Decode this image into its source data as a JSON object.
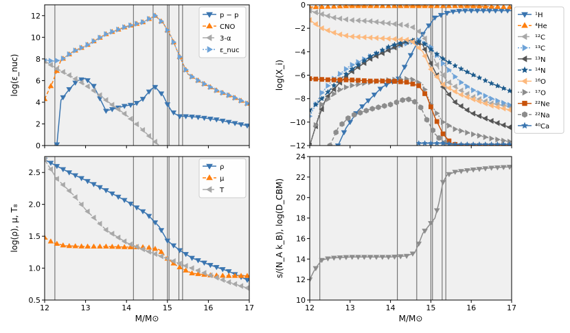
{
  "chart_data": [
    {
      "id": "nuc",
      "type": "line",
      "xlabel": "",
      "ylabel": "log(ε_nuc)",
      "xlim": [
        12,
        17
      ],
      "ylim": [
        0,
        13
      ],
      "xticks": [
        12,
        13,
        14,
        15,
        16,
        17
      ],
      "yticks": [
        0,
        2,
        4,
        6,
        8,
        10,
        12
      ],
      "xticklabels": [
        "",
        "",
        "",
        "",
        "",
        ""
      ],
      "yticklabels": [
        "0",
        "2",
        "4",
        "6",
        "8",
        "10",
        "12"
      ],
      "legend": "top-right",
      "series": [
        {
          "name": "p − p",
          "color": "#3a75b0",
          "dash": "",
          "marker": "tri-down",
          "x": [
            12.3,
            12.4,
            12.6,
            12.8,
            13.0,
            13.2,
            13.5,
            13.8,
            14.0,
            14.2,
            14.4,
            14.6,
            14.7,
            14.8,
            14.9,
            15.0,
            15.1,
            15.2,
            15.3,
            15.5,
            15.8,
            16.2,
            16.6,
            17.0
          ],
          "y": [
            0.1,
            4.2,
            5.2,
            6.0,
            6.2,
            5.5,
            3.2,
            3.5,
            3.7,
            3.8,
            4.3,
            5.2,
            5.4,
            5.0,
            4.6,
            3.8,
            3.2,
            2.9,
            2.7,
            2.7,
            2.6,
            2.4,
            2.1,
            1.8
          ]
        },
        {
          "name": "CNO",
          "color": "#ff7f0e",
          "dash": "5,3",
          "marker": "tri-up",
          "x": [
            12.0,
            12.2,
            12.4,
            12.7,
            13.0,
            13.5,
            14.0,
            14.4,
            14.7,
            14.9,
            15.1,
            15.3,
            15.5,
            15.8,
            16.2,
            16.6,
            17.0
          ],
          "y": [
            4.3,
            5.9,
            7.9,
            8.7,
            9.2,
            10.3,
            11.0,
            11.4,
            12.0,
            11.3,
            10.0,
            8.2,
            6.6,
            5.9,
            5.1,
            4.5,
            3.8
          ]
        },
        {
          "name": "3-α",
          "color": "#a8a8a8",
          "dash": "7,3",
          "marker": "tri-left",
          "x": [
            12.0,
            12.3,
            12.6,
            13.0,
            13.3,
            13.6,
            14.0,
            14.3,
            14.6,
            14.8
          ],
          "y": [
            7.8,
            7.1,
            6.5,
            5.6,
            4.8,
            3.9,
            2.8,
            1.8,
            0.7,
            0.0
          ]
        },
        {
          "name": "ε_nuc",
          "color": "#6ea3d8",
          "dash": "2,2",
          "marker": "tri-right",
          "x": [
            12.0,
            12.2,
            12.4,
            12.7,
            13.0,
            13.5,
            14.0,
            14.4,
            14.7,
            14.9,
            15.1,
            15.3,
            15.5,
            15.8,
            16.2,
            16.6,
            17.0
          ],
          "y": [
            7.9,
            7.8,
            7.9,
            8.7,
            9.2,
            10.3,
            11.0,
            11.4,
            12.0,
            11.3,
            10.0,
            8.2,
            6.6,
            5.9,
            5.1,
            4.5,
            3.8
          ]
        }
      ]
    },
    {
      "id": "abund",
      "type": "line",
      "xlabel": "",
      "ylabel": "log(X_i)",
      "xlim": [
        12,
        17
      ],
      "ylim": [
        -12,
        0
      ],
      "xticks": [
        12,
        13,
        14,
        15,
        16,
        17
      ],
      "yticks": [
        -12,
        -10,
        -8,
        -6,
        -4,
        -2,
        0
      ],
      "xticklabels": [
        "",
        "",
        "",
        "",
        "",
        ""
      ],
      "yticklabels": [
        "−12",
        "−10",
        "−8",
        "−6",
        "−4",
        "−2",
        "0"
      ],
      "legend": "outside-right",
      "series": [
        {
          "name": "¹H",
          "color": "#3a75b0",
          "dash": "",
          "marker": "tri-down",
          "x": [
            12.7,
            12.9,
            13.2,
            13.5,
            13.8,
            14.2,
            14.5,
            14.7,
            14.9,
            15.1,
            15.3,
            15.5,
            15.8,
            16.2,
            16.6,
            17.0
          ],
          "y": [
            -12.0,
            -10.5,
            -9.0,
            -8.0,
            -7.0,
            -6.3,
            -4.3,
            -3.0,
            -2.0,
            -1.1,
            -0.8,
            -0.6,
            -0.5,
            -0.5,
            -0.5,
            -0.5
          ]
        },
        {
          "name": "⁴He",
          "color": "#ff7f0e",
          "dash": "5,3",
          "marker": "tri-up",
          "x": [
            12.0,
            13.0,
            14.0,
            15.0,
            16.0,
            17.0
          ],
          "y": [
            -0.2,
            -0.1,
            -0.1,
            -0.1,
            -0.1,
            -0.2
          ]
        },
        {
          "name": "¹²C",
          "color": "#a8a8a8",
          "dash": "7,3",
          "marker": "tri-left",
          "x": [
            12.0,
            12.3,
            12.6,
            13.0,
            13.5,
            14.0,
            14.5,
            14.8,
            15.0,
            15.2,
            15.4,
            15.7,
            16.0,
            16.5,
            17.0
          ],
          "y": [
            -0.5,
            -0.8,
            -1.1,
            -1.3,
            -1.4,
            -1.6,
            -1.8,
            -2.5,
            -4.0,
            -5.5,
            -6.5,
            -7.2,
            -7.8,
            -8.4,
            -8.7
          ]
        },
        {
          "name": "¹³C",
          "color": "#6ea3d8",
          "dash": "2,2",
          "marker": "tri-right",
          "x": [
            12.0,
            12.3,
            12.6,
            13.0,
            13.5,
            14.0,
            14.5,
            14.7,
            15.0,
            15.3,
            15.7,
            16.0,
            16.5,
            17.0
          ],
          "y": [
            -9.5,
            -7.5,
            -6.3,
            -5.2,
            -4.4,
            -3.7,
            -3.2,
            -3.0,
            -3.6,
            -5.0,
            -6.5,
            -7.2,
            -8.0,
            -8.6
          ]
        },
        {
          "name": "¹³N",
          "color": "#555555",
          "dash": "",
          "marker": "tri-left",
          "x": [
            12.0,
            12.2,
            12.4,
            12.7,
            13.0,
            13.5,
            14.0,
            14.5,
            14.8,
            15.0,
            15.3,
            15.6,
            16.0,
            16.5,
            17.0
          ],
          "y": [
            -12.0,
            -9.8,
            -8.0,
            -6.8,
            -5.8,
            -4.6,
            -3.8,
            -3.0,
            -3.4,
            -5.0,
            -7.0,
            -8.3,
            -9.2,
            -9.9,
            -10.5
          ]
        },
        {
          "name": "¹⁴N",
          "color": "#1c5a8c",
          "dash": "5,3",
          "marker": "star",
          "x": [
            12.0,
            12.3,
            12.7,
            13.0,
            13.5,
            14.0,
            14.5,
            14.8,
            15.0,
            15.3,
            15.6,
            16.0,
            16.5,
            17.0
          ],
          "y": [
            -9.0,
            -8.0,
            -6.5,
            -5.6,
            -4.4,
            -3.5,
            -3.0,
            -3.2,
            -3.8,
            -4.6,
            -5.2,
            -5.9,
            -6.7,
            -7.4
          ]
        },
        {
          "name": "¹⁶O",
          "color": "#fdb97d",
          "dash": "",
          "marker": "tri-left",
          "x": [
            12.0,
            12.3,
            12.7,
            13.0,
            13.5,
            14.0,
            14.5,
            14.8,
            15.0,
            15.3,
            15.7,
            16.0,
            16.5,
            17.0
          ],
          "y": [
            -1.3,
            -2.0,
            -2.5,
            -2.7,
            -2.8,
            -2.9,
            -3.0,
            -4.0,
            -5.5,
            -6.8,
            -7.6,
            -8.0,
            -8.6,
            -9.0
          ]
        },
        {
          "name": "¹⁷O",
          "color": "#8c8c8c",
          "dash": "2,2",
          "marker": "tri-right",
          "x": [
            12.0,
            12.3,
            12.7,
            13.0,
            13.5,
            14.0,
            14.5,
            14.8,
            15.0,
            15.3,
            15.6,
            16.0,
            16.5,
            17.0
          ],
          "y": [
            -12.0,
            -8.5,
            -7.3,
            -6.9,
            -6.6,
            -6.4,
            -6.3,
            -6.8,
            -8.5,
            -10.0,
            -10.6,
            -11.0,
            -11.4,
            -11.7
          ]
        },
        {
          "name": "²²Ne",
          "color": "#c8530b",
          "dash": "",
          "marker": "square",
          "x": [
            12.0,
            12.5,
            13.0,
            13.5,
            14.0,
            14.4,
            14.7,
            14.9,
            15.1,
            15.3,
            15.5,
            15.7,
            16.0,
            16.5,
            17.0
          ],
          "y": [
            -6.3,
            -6.4,
            -6.4,
            -6.5,
            -6.5,
            -6.6,
            -6.9,
            -7.8,
            -9.6,
            -11.0,
            -11.8,
            -12.0,
            -12.0,
            -12.0,
            -12.0
          ]
        },
        {
          "name": "²²Na",
          "color": "#8c8c8c",
          "dash": "5,3",
          "marker": "hexagon",
          "x": [
            12.5,
            12.7,
            13.0,
            13.5,
            14.0,
            14.4,
            14.7,
            14.9,
            15.1,
            15.3,
            15.5
          ],
          "y": [
            -12.0,
            -10.5,
            -9.5,
            -8.9,
            -8.5,
            -8.0,
            -8.4,
            -9.8,
            -11.0,
            -11.7,
            -12.0
          ]
        },
        {
          "name": "⁴⁰Ca",
          "color": "#3a75b0",
          "dash": "",
          "marker": "star",
          "x": [
            14.7,
            15.0,
            15.3,
            15.6,
            16.0,
            16.5,
            17.0
          ],
          "y": [
            -11.8,
            -11.8,
            -11.8,
            -11.9,
            -11.9,
            -11.9,
            -11.9
          ]
        }
      ]
    },
    {
      "id": "struct",
      "type": "line",
      "xlabel": "M/M⊙",
      "ylabel": "log(ρ), μ, T₈",
      "xlim": [
        12,
        17
      ],
      "ylim": [
        0.5,
        2.75
      ],
      "xticks": [
        12,
        13,
        14,
        15,
        16,
        17
      ],
      "yticks": [
        0.5,
        1.0,
        1.5,
        2.0,
        2.5
      ],
      "xticklabels": [
        "12",
        "13",
        "14",
        "15",
        "16",
        "17"
      ],
      "yticklabels": [
        "0.5",
        "1.0",
        "1.5",
        "2.0",
        "2.5"
      ],
      "legend": "top-right",
      "series": [
        {
          "name": "ρ",
          "color": "#3a75b0",
          "dash": "",
          "marker": "tri-down",
          "x": [
            12.0,
            12.3,
            12.6,
            13.0,
            13.5,
            14.0,
            14.5,
            14.8,
            15.0,
            15.3,
            15.6,
            16.0,
            16.5,
            17.0
          ],
          "y": [
            2.7,
            2.6,
            2.5,
            2.38,
            2.22,
            2.05,
            1.85,
            1.65,
            1.43,
            1.28,
            1.16,
            1.06,
            0.95,
            0.8
          ]
        },
        {
          "name": "μ",
          "color": "#ff7f0e",
          "dash": "5,3",
          "marker": "tri-up",
          "x": [
            12.0,
            12.2,
            12.5,
            13.0,
            13.5,
            14.0,
            14.5,
            14.8,
            15.0,
            15.2,
            15.4,
            15.6,
            16.0,
            16.5,
            17.0
          ],
          "y": [
            1.48,
            1.4,
            1.35,
            1.34,
            1.34,
            1.33,
            1.33,
            1.29,
            1.15,
            1.05,
            0.98,
            0.92,
            0.89,
            0.88,
            0.88
          ]
        },
        {
          "name": "T",
          "color": "#a8a8a8",
          "dash": "7,3",
          "marker": "tri-left",
          "x": [
            12.0,
            12.3,
            12.7,
            13.0,
            13.5,
            14.0,
            14.5,
            15.0,
            15.3,
            15.6,
            16.0,
            16.5,
            17.0
          ],
          "y": [
            2.7,
            2.4,
            2.15,
            1.92,
            1.6,
            1.4,
            1.27,
            1.15,
            1.07,
            1.0,
            0.9,
            0.78,
            0.68
          ]
        }
      ]
    },
    {
      "id": "entropy",
      "type": "line",
      "xlabel": "M/M⊙",
      "ylabel": "s/(N_A k_B), log(D_CBM)",
      "xlim": [
        12,
        17
      ],
      "ylim": [
        10,
        24
      ],
      "xticks": [
        12,
        13,
        14,
        15,
        16,
        17
      ],
      "yticks": [
        10,
        12,
        14,
        16,
        18,
        20,
        22,
        24
      ],
      "xticklabels": [
        "12",
        "13",
        "14",
        "15",
        "16",
        "17"
      ],
      "yticklabels": [
        "10",
        "12",
        "14",
        "16",
        "18",
        "20",
        "22",
        "24"
      ],
      "legend": "none",
      "series": [
        {
          "name": "s",
          "color": "#8c8c8c",
          "dash": "",
          "marker": "tri-down",
          "x": [
            12.0,
            12.1,
            12.2,
            12.3,
            12.5,
            13.0,
            13.5,
            14.0,
            14.4,
            14.6,
            14.7,
            14.8,
            14.9,
            15.0,
            15.1,
            15.2,
            15.3,
            15.4,
            15.6,
            16.0,
            16.5,
            17.0
          ],
          "y": [
            12.0,
            12.8,
            13.4,
            13.9,
            14.1,
            14.2,
            14.2,
            14.2,
            14.3,
            14.6,
            15.5,
            16.5,
            17.0,
            17.5,
            18.0,
            19.5,
            21.5,
            22.2,
            22.5,
            22.7,
            22.9,
            23.0
          ]
        }
      ]
    }
  ],
  "boundaries": [
    12.25,
    14.17,
    14.65,
    15.0,
    15.04,
    15.28,
    15.37
  ],
  "shaded": [
    [
      12.0,
      17.0
    ]
  ]
}
